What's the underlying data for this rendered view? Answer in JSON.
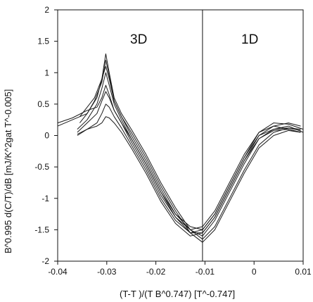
{
  "chart_data": {
    "type": "line",
    "xlabel": "(T-T )/(T B^0.747)   [T^-0.747]",
    "ylabel": "B^0.995  d(C/T)/dB   [mJ/K^2gat T^-0.005]",
    "xlim": [
      -0.04,
      0.01
    ],
    "ylim": [
      -2,
      2
    ],
    "x_ticks": [
      "-0.04",
      "-0.03",
      "-0.02",
      "-0.01",
      "0",
      "0.01"
    ],
    "y_ticks": [
      "2",
      "1.5",
      "1",
      "0.5",
      "0",
      "-0.5",
      "-1",
      "-1.5",
      "-2"
    ],
    "annotations": [
      {
        "text": "3D",
        "x": -0.0245,
        "y": 1.65
      },
      {
        "text": "1D",
        "x": 0.0,
        "y": 1.65
      }
    ],
    "vertical_line_x": -0.0105,
    "grid": false,
    "series": [
      {
        "values": [
          [
            -0.0355,
            0.3
          ],
          [
            -0.034,
            0.45
          ],
          [
            -0.0325,
            0.6
          ],
          [
            -0.031,
            0.9
          ],
          [
            -0.0302,
            1.3
          ],
          [
            -0.0295,
            1.0
          ],
          [
            -0.0285,
            0.6
          ],
          [
            -0.027,
            0.35
          ],
          [
            -0.025,
            0.1
          ],
          [
            -0.022,
            -0.3
          ],
          [
            -0.019,
            -0.75
          ],
          [
            -0.016,
            -1.15
          ],
          [
            -0.013,
            -1.5
          ],
          [
            -0.0105,
            -1.65
          ],
          [
            -0.008,
            -1.45
          ],
          [
            -0.005,
            -1.0
          ],
          [
            -0.002,
            -0.55
          ],
          [
            0.001,
            -0.15
          ],
          [
            0.004,
            0.05
          ],
          [
            0.007,
            0.12
          ],
          [
            0.0095,
            0.1
          ]
        ]
      },
      {
        "values": [
          [
            -0.0355,
            0.2
          ],
          [
            -0.034,
            0.35
          ],
          [
            -0.0325,
            0.55
          ],
          [
            -0.031,
            0.85
          ],
          [
            -0.0302,
            1.2
          ],
          [
            -0.0295,
            0.95
          ],
          [
            -0.0285,
            0.55
          ],
          [
            -0.027,
            0.3
          ],
          [
            -0.025,
            0.05
          ],
          [
            -0.022,
            -0.35
          ],
          [
            -0.019,
            -0.8
          ],
          [
            -0.016,
            -1.2
          ],
          [
            -0.013,
            -1.55
          ],
          [
            -0.0105,
            -1.7
          ],
          [
            -0.008,
            -1.5
          ],
          [
            -0.005,
            -1.05
          ],
          [
            -0.002,
            -0.6
          ],
          [
            0.001,
            -0.2
          ],
          [
            0.004,
            0.0
          ],
          [
            0.007,
            0.08
          ],
          [
            0.0095,
            0.05
          ]
        ]
      },
      {
        "values": [
          [
            -0.04,
            0.15
          ],
          [
            -0.037,
            0.25
          ],
          [
            -0.034,
            0.35
          ],
          [
            -0.032,
            0.6
          ],
          [
            -0.031,
            0.9
          ],
          [
            -0.0302,
            1.1
          ],
          [
            -0.0295,
            0.9
          ],
          [
            -0.0285,
            0.55
          ],
          [
            -0.027,
            0.3
          ],
          [
            -0.025,
            0.0
          ],
          [
            -0.022,
            -0.4
          ],
          [
            -0.019,
            -0.85
          ],
          [
            -0.016,
            -1.25
          ],
          [
            -0.013,
            -1.5
          ],
          [
            -0.0105,
            -1.6
          ],
          [
            -0.008,
            -1.35
          ],
          [
            -0.005,
            -0.9
          ],
          [
            -0.002,
            -0.45
          ],
          [
            0.001,
            -0.05
          ],
          [
            0.004,
            0.1
          ],
          [
            0.007,
            0.15
          ],
          [
            0.01,
            0.05
          ]
        ]
      },
      {
        "values": [
          [
            -0.036,
            0.1
          ],
          [
            -0.034,
            0.25
          ],
          [
            -0.032,
            0.5
          ],
          [
            -0.031,
            0.75
          ],
          [
            -0.0302,
            1.0
          ],
          [
            -0.0295,
            0.8
          ],
          [
            -0.0285,
            0.5
          ],
          [
            -0.027,
            0.25
          ],
          [
            -0.025,
            -0.05
          ],
          [
            -0.022,
            -0.45
          ],
          [
            -0.019,
            -0.9
          ],
          [
            -0.016,
            -1.3
          ],
          [
            -0.013,
            -1.55
          ],
          [
            -0.0105,
            -1.55
          ],
          [
            -0.008,
            -1.3
          ],
          [
            -0.005,
            -0.85
          ],
          [
            -0.002,
            -0.4
          ],
          [
            0.001,
            0.0
          ],
          [
            0.004,
            0.15
          ],
          [
            0.007,
            0.2
          ],
          [
            0.0095,
            0.15
          ]
        ]
      },
      {
        "values": [
          [
            -0.04,
            0.2
          ],
          [
            -0.037,
            0.28
          ],
          [
            -0.034,
            0.4
          ],
          [
            -0.032,
            0.45
          ],
          [
            -0.031,
            0.6
          ],
          [
            -0.0302,
            0.8
          ],
          [
            -0.0295,
            0.65
          ],
          [
            -0.0285,
            0.4
          ],
          [
            -0.027,
            0.2
          ],
          [
            -0.025,
            -0.05
          ],
          [
            -0.022,
            -0.45
          ],
          [
            -0.019,
            -0.9
          ],
          [
            -0.016,
            -1.25
          ],
          [
            -0.013,
            -1.45
          ],
          [
            -0.0105,
            -1.5
          ],
          [
            -0.008,
            -1.25
          ],
          [
            -0.005,
            -0.8
          ],
          [
            -0.002,
            -0.35
          ],
          [
            0.001,
            0.05
          ],
          [
            0.004,
            0.2
          ],
          [
            0.007,
            0.18
          ],
          [
            0.01,
            0.1
          ]
        ]
      },
      {
        "values": [
          [
            -0.036,
            0.05
          ],
          [
            -0.034,
            0.2
          ],
          [
            -0.032,
            0.35
          ],
          [
            -0.031,
            0.55
          ],
          [
            -0.0302,
            0.7
          ],
          [
            -0.0295,
            0.6
          ],
          [
            -0.0285,
            0.4
          ],
          [
            -0.027,
            0.2
          ],
          [
            -0.025,
            -0.1
          ],
          [
            -0.022,
            -0.5
          ],
          [
            -0.019,
            -0.95
          ],
          [
            -0.016,
            -1.3
          ],
          [
            -0.013,
            -1.5
          ],
          [
            -0.0105,
            -1.45
          ],
          [
            -0.008,
            -1.2
          ],
          [
            -0.005,
            -0.75
          ],
          [
            -0.002,
            -0.3
          ],
          [
            0.001,
            0.05
          ],
          [
            0.004,
            0.15
          ],
          [
            0.007,
            0.1
          ],
          [
            0.0095,
            0.05
          ]
        ]
      },
      {
        "values": [
          [
            -0.036,
            0.0
          ],
          [
            -0.034,
            0.1
          ],
          [
            -0.032,
            0.2
          ],
          [
            -0.031,
            0.35
          ],
          [
            -0.0302,
            0.5
          ],
          [
            -0.0295,
            0.45
          ],
          [
            -0.0285,
            0.3
          ],
          [
            -0.027,
            0.12
          ],
          [
            -0.025,
            -0.15
          ],
          [
            -0.022,
            -0.55
          ],
          [
            -0.019,
            -1.0
          ],
          [
            -0.016,
            -1.35
          ],
          [
            -0.013,
            -1.55
          ],
          [
            -0.0105,
            -1.5
          ],
          [
            -0.008,
            -1.25
          ],
          [
            -0.005,
            -0.8
          ],
          [
            -0.002,
            -0.35
          ],
          [
            0.001,
            0.0
          ],
          [
            0.004,
            0.1
          ],
          [
            0.007,
            0.12
          ],
          [
            0.0095,
            0.08
          ]
        ]
      },
      {
        "values": [
          [
            -0.036,
            0.02
          ],
          [
            -0.034,
            0.1
          ],
          [
            -0.032,
            0.15
          ],
          [
            -0.031,
            0.2
          ],
          [
            -0.0302,
            0.3
          ],
          [
            -0.0295,
            0.28
          ],
          [
            -0.0285,
            0.2
          ],
          [
            -0.027,
            0.05
          ],
          [
            -0.025,
            -0.2
          ],
          [
            -0.022,
            -0.6
          ],
          [
            -0.019,
            -1.05
          ],
          [
            -0.016,
            -1.4
          ],
          [
            -0.013,
            -1.6
          ],
          [
            -0.0105,
            -1.55
          ],
          [
            -0.008,
            -1.3
          ],
          [
            -0.005,
            -0.85
          ],
          [
            -0.002,
            -0.4
          ],
          [
            0.001,
            -0.05
          ],
          [
            0.004,
            0.08
          ],
          [
            0.007,
            0.1
          ],
          [
            0.0095,
            0.05
          ]
        ]
      }
    ]
  }
}
